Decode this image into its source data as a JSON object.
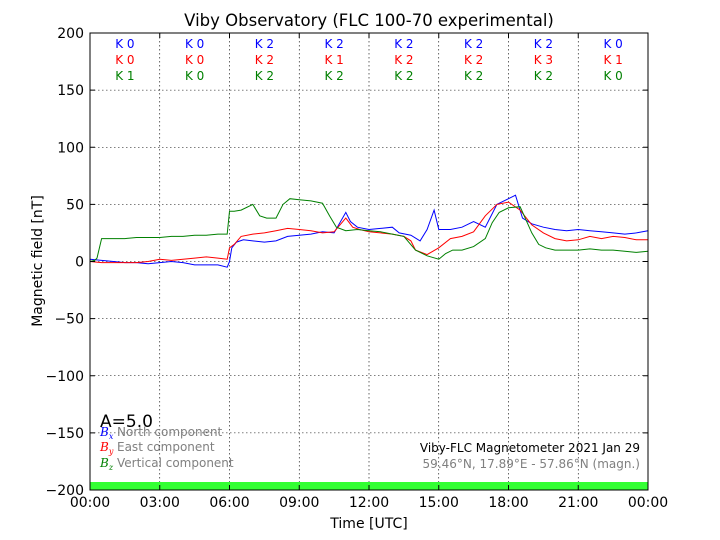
{
  "chart_data": {
    "type": "line",
    "title": "Viby Observatory (FLC 100-70 experimental)",
    "xlabel": "Time [UTC]",
    "ylabel": "Magnetic field [nT]",
    "xlim": [
      0,
      24
    ],
    "ylim": [
      -200,
      200
    ],
    "x_ticks": [
      0,
      3,
      6,
      9,
      12,
      15,
      18,
      21,
      24
    ],
    "x_tick_labels": [
      "00:00",
      "03:00",
      "06:00",
      "09:00",
      "12:00",
      "15:00",
      "18:00",
      "21:00",
      "00:00"
    ],
    "y_ticks": [
      -200,
      -150,
      -100,
      -50,
      0,
      50,
      100,
      150,
      200
    ],
    "y_tick_labels": [
      "−200",
      "−150",
      "−100",
      "−50",
      "0",
      "50",
      "100",
      "150",
      "200"
    ],
    "grid": true,
    "k_index_blocks": {
      "labels": [
        "0-3",
        "3-6",
        "6-9",
        "9-12",
        "12-15",
        "15-18",
        "18-21",
        "21-24"
      ],
      "rows": [
        {
          "color": "#0000ff",
          "values": [
            "K 0",
            "K 0",
            "K 2",
            "K 2",
            "K 2",
            "K 2",
            "K 2",
            "K 0"
          ]
        },
        {
          "color": "#ff0000",
          "values": [
            "K 0",
            "K 0",
            "K 2",
            "K 1",
            "K 2",
            "K 2",
            "K 3",
            "K 1"
          ]
        },
        {
          "color": "#008000",
          "values": [
            "K 1",
            "K 0",
            "K 2",
            "K 2",
            "K 2",
            "K 2",
            "K 2",
            "K 0"
          ]
        }
      ]
    },
    "a_index_label": "A=5.0",
    "legend_position": "bottom-left",
    "legend": [
      {
        "symbol": "B",
        "sub": "x",
        "text": "North component",
        "color": "#0000ff"
      },
      {
        "symbol": "B",
        "sub": "y",
        "text": "East component",
        "color": "#ff0000"
      },
      {
        "symbol": "B",
        "sub": "z",
        "text": "Vertical component",
        "color": "#008000"
      }
    ],
    "info_line1": "Viby-FLC Magnetometer 2021 Jan 29",
    "info_line2": "59.46°N, 17.89°E - 57.86°N (magn.)",
    "status_bar_color": "#33ff33",
    "series": [
      {
        "name": "North component",
        "color": "#0000ff",
        "x": [
          0,
          0.5,
          1,
          1.5,
          2,
          2.5,
          3,
          3.5,
          4,
          4.5,
          5,
          5.5,
          5.9,
          6.0,
          6.1,
          6.3,
          6.6,
          7.0,
          7.5,
          8.0,
          8.5,
          9.0,
          9.5,
          10.0,
          10.5,
          11.0,
          11.2,
          11.5,
          12.0,
          12.5,
          13.0,
          13.3,
          13.8,
          14.2,
          14.5,
          14.8,
          15.0,
          15.5,
          16.0,
          16.5,
          17.0,
          17.5,
          18.0,
          18.3,
          18.6,
          19.0,
          19.5,
          20.0,
          20.5,
          21.0,
          21.5,
          22.0,
          22.5,
          23.0,
          23.5,
          24.0
        ],
        "y": [
          2,
          1,
          0,
          -1,
          -1,
          -2,
          -1,
          0,
          -1,
          -3,
          -3,
          -3,
          -5,
          0,
          12,
          17,
          19,
          18,
          17,
          18,
          22,
          23,
          24,
          26,
          25,
          43,
          35,
          30,
          28,
          29,
          30,
          25,
          23,
          18,
          28,
          45,
          28,
          28,
          30,
          35,
          30,
          50,
          55,
          58,
          38,
          33,
          30,
          28,
          27,
          28,
          27,
          26,
          25,
          24,
          25,
          27
        ]
      },
      {
        "name": "East component",
        "color": "#ff0000",
        "x": [
          0,
          0.5,
          1,
          1.5,
          2,
          2.5,
          3,
          3.5,
          4,
          4.5,
          5,
          5.5,
          5.9,
          6.0,
          6.2,
          6.5,
          7.0,
          7.5,
          8.0,
          8.5,
          9.0,
          9.5,
          10.0,
          10.5,
          11.0,
          11.3,
          11.6,
          12.0,
          12.5,
          13.0,
          13.5,
          13.8,
          14.0,
          14.5,
          15.0,
          15.5,
          16.0,
          16.5,
          17.0,
          17.5,
          18.0,
          18.5,
          19.0,
          19.5,
          20.0,
          20.5,
          21.0,
          21.5,
          22.0,
          22.5,
          23.0,
          23.5,
          24.0
        ],
        "y": [
          0,
          -1,
          -1,
          -1,
          -1,
          0,
          2,
          1,
          2,
          3,
          4,
          3,
          2,
          12,
          15,
          22,
          24,
          25,
          27,
          29,
          28,
          27,
          25,
          26,
          38,
          30,
          28,
          26,
          25,
          24,
          22,
          18,
          10,
          6,
          12,
          20,
          22,
          26,
          40,
          50,
          52,
          45,
          32,
          25,
          20,
          18,
          19,
          22,
          20,
          22,
          21,
          19,
          19
        ]
      },
      {
        "name": "Vertical component",
        "color": "#008000",
        "x": [
          0,
          0.2,
          0.3,
          0.5,
          1,
          1.5,
          2,
          2.5,
          3,
          3.5,
          4,
          4.5,
          5,
          5.5,
          5.9,
          6.0,
          6.2,
          6.5,
          7.0,
          7.3,
          7.6,
          8.0,
          8.3,
          8.6,
          9.0,
          9.5,
          10.0,
          10.3,
          10.6,
          11.0,
          11.5,
          12.0,
          12.5,
          13.0,
          13.5,
          14.0,
          14.5,
          15.0,
          15.3,
          15.6,
          16.0,
          16.5,
          17.0,
          17.3,
          17.6,
          18.0,
          18.5,
          19.0,
          19.3,
          19.6,
          20.0,
          20.5,
          21.0,
          21.5,
          22.0,
          22.5,
          23.0,
          23.5,
          24.0
        ],
        "y": [
          0,
          1,
          3,
          20,
          20,
          20,
          21,
          21,
          21,
          22,
          22,
          23,
          23,
          24,
          24,
          44,
          44,
          45,
          50,
          40,
          38,
          38,
          50,
          55,
          54,
          53,
          51,
          40,
          30,
          27,
          28,
          27,
          26,
          24,
          22,
          10,
          5,
          2,
          7,
          10,
          10,
          13,
          20,
          34,
          43,
          47,
          48,
          25,
          15,
          12,
          10,
          10,
          10,
          11,
          10,
          10,
          9,
          8,
          9
        ]
      }
    ]
  }
}
